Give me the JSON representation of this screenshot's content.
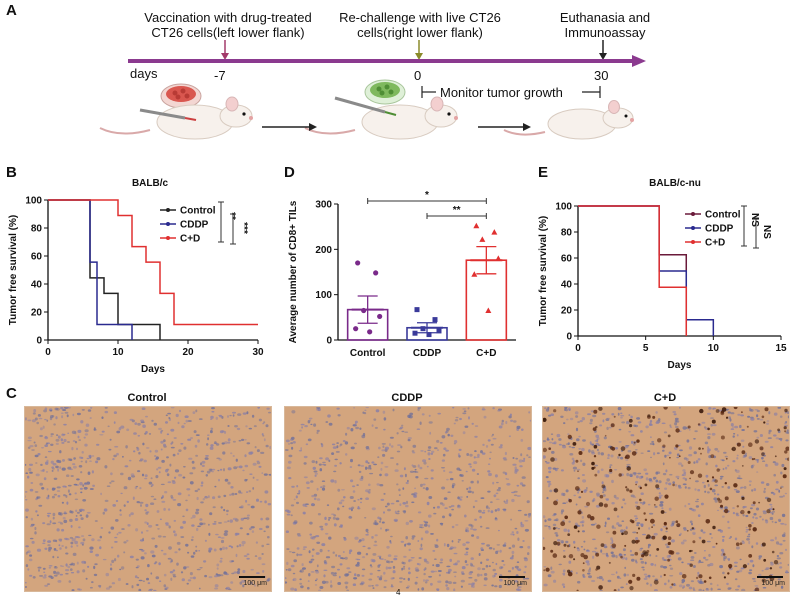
{
  "panels": {
    "a": "A",
    "b": "B",
    "c": "C",
    "d": "D",
    "e": "E"
  },
  "timeline": {
    "vaccination": "Vaccination with drug-treated CT26 cells(left lower flank)",
    "vaccination_line1": "Vaccination with drug-treated",
    "vaccination_line2": "CT26 cells(left lower flank)",
    "rechallenge_line1": "Re-challenge with live CT26",
    "rechallenge_line2": "cells(right lower flank)",
    "euthanasia_line1": "Euthanasia and",
    "euthanasia_line2": "Immunoassay",
    "days_label": "days",
    "day_minus7": "-7",
    "day_0": "0",
    "day_30": "30",
    "monitor": "Monitor tumor growth",
    "colors": {
      "axis": "#8b3a8f",
      "vacc_arrow": "#a33a6a",
      "rechal_arrow": "#8a8a2a",
      "euth_arrow": "#222222"
    }
  },
  "chart_data": [
    {
      "id": "B",
      "type": "line",
      "title": "BALB/c",
      "xlabel": "Days",
      "ylabel": "Tumor free survival (%)",
      "xlim": [
        0,
        30
      ],
      "ylim": [
        0,
        100
      ],
      "xticks": [
        "0",
        "10",
        "20",
        "30"
      ],
      "yticks": [
        "0",
        "20",
        "40",
        "60",
        "80",
        "100"
      ],
      "legend": [
        "Control",
        "CDDP",
        "C+D"
      ],
      "significance": [
        "**",
        "***"
      ],
      "series": [
        {
          "name": "Control",
          "color": "#222222",
          "x": [
            0,
            6,
            6,
            8,
            8,
            10,
            10,
            16,
            16
          ],
          "y": [
            100,
            100,
            44.4,
            44.4,
            33.3,
            33.3,
            11.1,
            11.1,
            0
          ]
        },
        {
          "name": "CDDP",
          "color": "#2a2a8f",
          "x": [
            0,
            6,
            6,
            7,
            7,
            12,
            12
          ],
          "y": [
            100,
            100,
            55.6,
            55.6,
            11.1,
            11.1,
            0
          ]
        },
        {
          "name": "C+D",
          "color": "#e03030",
          "x": [
            0,
            10,
            10,
            12,
            12,
            14,
            14,
            16,
            16,
            18,
            18,
            30
          ],
          "y": [
            100,
            100,
            88.9,
            88.9,
            66.7,
            66.7,
            55.6,
            55.6,
            33.3,
            33.3,
            11.1,
            11.1
          ]
        }
      ]
    },
    {
      "id": "D",
      "type": "bar",
      "title": "",
      "xlabel": "",
      "ylabel": "Average number of CD8+ TILs",
      "ylim": [
        0,
        300
      ],
      "yticks": [
        "0",
        "100",
        "200",
        "300"
      ],
      "categories": [
        "Control",
        "CDDP",
        "C+D"
      ],
      "values": [
        67,
        27,
        176
      ],
      "errors": [
        30,
        11,
        30
      ],
      "colors": [
        "#7a2a8a",
        "#3a3a9a",
        "#e03030"
      ],
      "points": [
        [
          170,
          148,
          65,
          52,
          25,
          18
        ],
        [
          67,
          45,
          25,
          20,
          15,
          12
        ],
        [
          252,
          238,
          222,
          180,
          145,
          65
        ]
      ],
      "significance": [
        {
          "label": "*",
          "from": 0,
          "to": 2
        },
        {
          "label": "**",
          "from": 1,
          "to": 2
        }
      ]
    },
    {
      "id": "E",
      "type": "line",
      "title": "BALB/c-nu",
      "xlabel": "Days",
      "ylabel": "Tumor free survival (%)",
      "xlim": [
        0,
        15
      ],
      "ylim": [
        0,
        100
      ],
      "xticks": [
        "0",
        "5",
        "10",
        "15"
      ],
      "yticks": [
        "0",
        "20",
        "40",
        "60",
        "80",
        "100"
      ],
      "legend": [
        "Control",
        "CDDP",
        "C+D"
      ],
      "significance": [
        "NS",
        "NS"
      ],
      "series": [
        {
          "name": "Control",
          "color": "#6a1a3a",
          "x": [
            0,
            6,
            6,
            8,
            8
          ],
          "y": [
            100,
            100,
            62.5,
            62.5,
            0
          ]
        },
        {
          "name": "CDDP",
          "color": "#2a2a8f",
          "x": [
            0,
            6,
            6,
            8,
            8,
            10,
            10
          ],
          "y": [
            100,
            100,
            50,
            50,
            12.5,
            12.5,
            0
          ]
        },
        {
          "name": "C+D",
          "color": "#e03030",
          "x": [
            0,
            6,
            6,
            8,
            8
          ],
          "y": [
            100,
            100,
            37.5,
            37.5,
            0
          ]
        }
      ]
    }
  ],
  "micrographs": [
    {
      "title": "Control",
      "scale": "100 μm",
      "dark_dots": 0
    },
    {
      "title": "CDDP",
      "scale": "100 μm",
      "dark_dots": 0
    },
    {
      "title": "C+D",
      "scale": "100 μm",
      "dark_dots": 1
    }
  ],
  "footer_mark": "4"
}
